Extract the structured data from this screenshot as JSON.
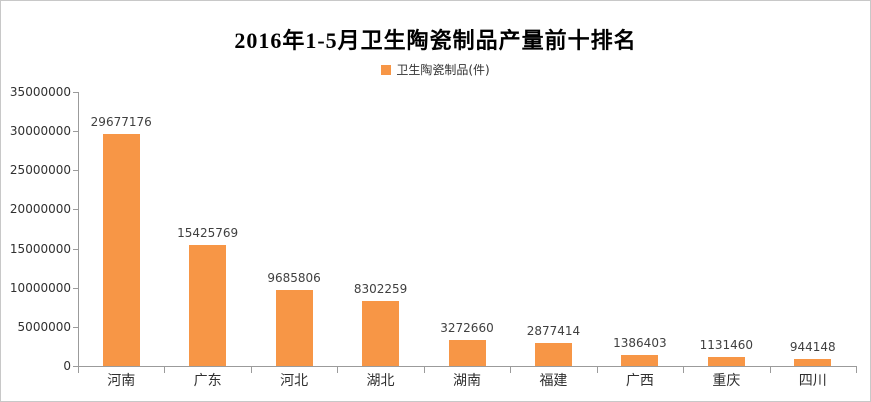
{
  "chart_data": {
    "type": "bar",
    "title": "2016年1-5月卫生陶瓷制品产量前十排名",
    "legend": {
      "label": "卫生陶瓷制品(件)",
      "swatch_color": "#F79646",
      "position": "top-center"
    },
    "categories": [
      "河南",
      "广东",
      "河北",
      "湖北",
      "湖南",
      "福建",
      "广西",
      "重庆",
      "四川"
    ],
    "values": [
      29677176,
      15425769,
      9685806,
      8302259,
      3272660,
      2877414,
      1386403,
      1131460,
      944148
    ],
    "value_labels": [
      "29677176",
      "15425769",
      "9685806",
      "8302259",
      "3272660",
      "2877414",
      "1386403",
      "1131460",
      "944148"
    ],
    "ytick_labels": [
      "0",
      "5000000",
      "10000000",
      "15000000",
      "20000000",
      "25000000",
      "30000000",
      "35000000"
    ],
    "ylim": [
      0,
      35000000
    ],
    "ytick_step": 5000000,
    "xlabel": "",
    "ylabel": "",
    "grid": false,
    "bar_color": "#F79646",
    "axis_color": "#9b9b9b"
  }
}
